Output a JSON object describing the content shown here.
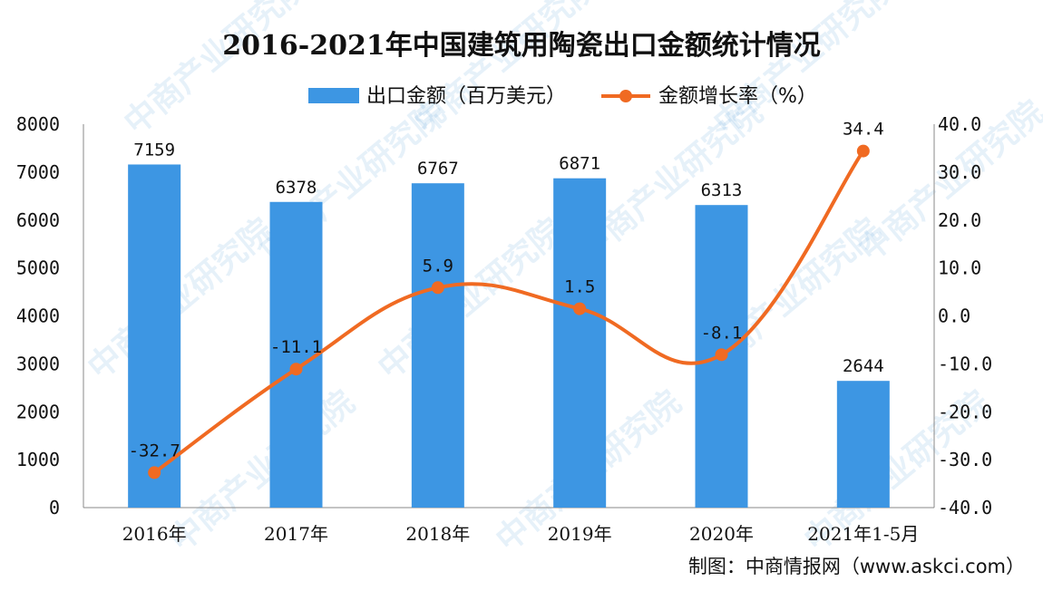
{
  "chart_data": {
    "type": "bar",
    "title": "2016-2021年中国建筑用陶瓷出口金额统计情况",
    "categories": [
      "2016年",
      "2017年",
      "2018年",
      "2019年",
      "2020年",
      "2021年1-5月"
    ],
    "series": [
      {
        "name": "出口金额（百万美元）",
        "type": "bar",
        "axis": "left",
        "values": [
          7159,
          6378,
          6767,
          6871,
          6313,
          2644
        ],
        "color": "#3d96e3"
      },
      {
        "name": "金额增长率（%）",
        "type": "line",
        "axis": "right",
        "values": [
          -32.7,
          -11.1,
          5.9,
          1.5,
          -8.1,
          34.4
        ],
        "color": "#f06a22"
      }
    ],
    "bar_labels": [
      "7159",
      "6378",
      "6767",
      "6871",
      "6313",
      "2644"
    ],
    "line_labels": [
      "-32.7",
      "-11.1",
      "5.9",
      "1.5",
      "-8.1",
      "34.4"
    ],
    "y_left": {
      "min": 0,
      "max": 8000,
      "ticks": [
        "0",
        "1000",
        "2000",
        "3000",
        "4000",
        "5000",
        "6000",
        "7000",
        "8000"
      ]
    },
    "y_right": {
      "min": -40,
      "max": 40,
      "ticks": [
        "-40.0",
        "-30.0",
        "-20.0",
        "-10.0",
        "0.0",
        "10.0",
        "20.0",
        "30.0",
        "40.0"
      ]
    },
    "legend_position": "top",
    "grid": false
  },
  "source": "制图：中商情报网（www.askci.com）",
  "watermark": "中商产业研究院"
}
